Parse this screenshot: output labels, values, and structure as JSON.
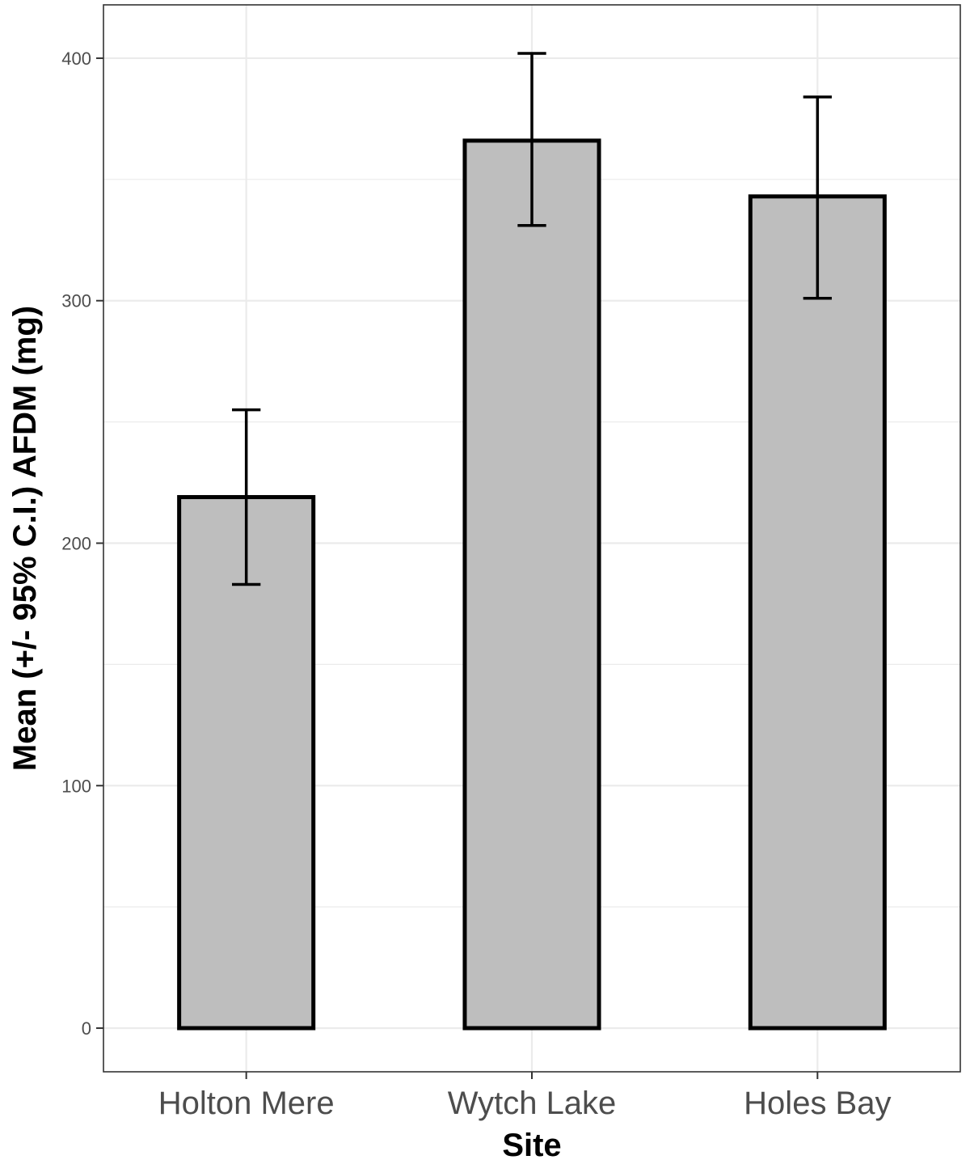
{
  "chart_data": {
    "type": "bar",
    "title": "",
    "xlabel": "Site",
    "ylabel": "Mean (+/- 95% C.I.) AFDM (mg)",
    "categories": [
      "Holton Mere",
      "Wytch Lake",
      "Holes Bay"
    ],
    "values": [
      219,
      366,
      343
    ],
    "error_low": [
      183,
      331,
      301
    ],
    "error_high": [
      255,
      402,
      384
    ],
    "ylim": [
      -18,
      422
    ],
    "yticks": [
      0,
      100,
      200,
      300,
      400
    ],
    "ytick_labels": [
      "0",
      "100",
      "200",
      "300",
      "400"
    ],
    "grid": true,
    "colors": {
      "bar_fill": "#bebebe",
      "bar_stroke": "#000000",
      "grid": "#ebebeb",
      "panel_border": "#333333"
    }
  }
}
